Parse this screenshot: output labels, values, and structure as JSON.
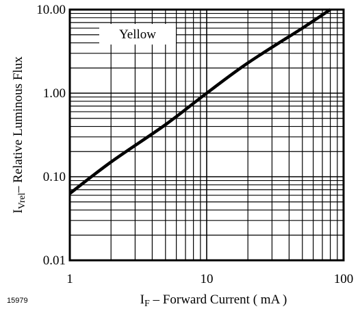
{
  "chart_data": {
    "type": "line",
    "x_scale": "log",
    "y_scale": "log",
    "xlim": [
      1,
      100
    ],
    "ylim": [
      0.01,
      10
    ],
    "xticks": [
      "1",
      "10",
      "100"
    ],
    "yticks": [
      "0.01",
      "0.10",
      "1.00",
      "10.00"
    ],
    "xlabel_main": "I",
    "xlabel_sub": "F",
    "xlabel_rest": " – Forward Current ( mA )",
    "ylabel_main": "I",
    "ylabel_sub": "Vrel",
    "ylabel_rest": "– Relative Luminous Flux",
    "legend": "Yellow",
    "grid": true,
    "series": [
      {
        "name": "Yellow",
        "x": [
          1,
          2,
          5,
          10,
          20,
          50,
          80
        ],
        "y": [
          0.063,
          0.15,
          0.42,
          1.0,
          2.3,
          6.0,
          10.0
        ]
      }
    ]
  },
  "figure_id": "15979"
}
